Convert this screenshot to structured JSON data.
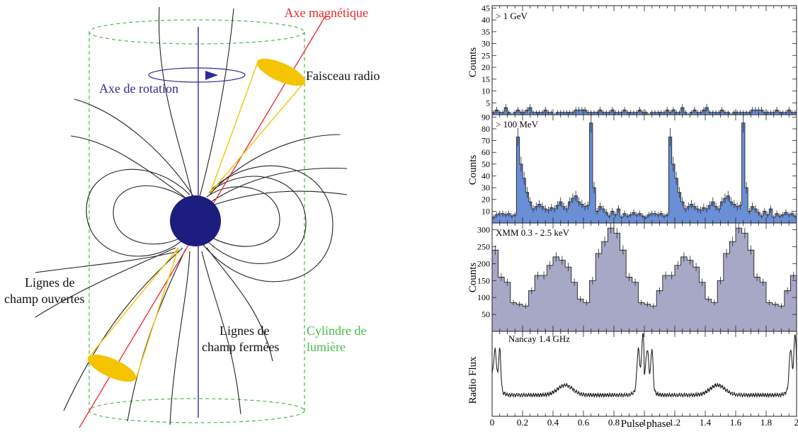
{
  "diagram": {
    "labels": {
      "magnetic_axis": "Axe magnétique",
      "radio_beam": "Faisceau radio",
      "rotation_axis": "Axe de rotation",
      "open_lines_1": "Lignes de",
      "open_lines_2": "champ ouvertes",
      "closed_lines_1": "Lignes de",
      "closed_lines_2": "champ fermées",
      "light_cyl_1": "Cylindre de",
      "light_cyl_2": "lumière"
    },
    "colors": {
      "magnetic_axis": "#e8242a",
      "rotation_axis": "#2b2b9e",
      "beam": "#f5c400",
      "cylinder": "#4db84d",
      "star": "#1d1d80",
      "field_lines": "#222222"
    }
  },
  "panels": {
    "xlabel": "Pulse phase",
    "p1": {
      "label": "> 1 GeV",
      "ylabel": "Counts"
    },
    "p2": {
      "label": "> 100 MeV",
      "ylabel": "Counts"
    },
    "p3": {
      "label": "XMM 0.3 - 2.5 keV",
      "ylabel": "Counts"
    },
    "p4": {
      "label": "Nancay 1.4 GHz",
      "ylabel": "Radio Flux"
    }
  },
  "chart_data": [
    {
      "type": "bar",
      "title": "> 1 GeV",
      "ylabel": "Counts",
      "xlabel": "Pulse phase",
      "xlim": [
        0,
        2
      ],
      "ylim": [
        0,
        46
      ],
      "yticks": [
        5,
        10,
        15,
        20,
        25,
        30,
        35,
        40,
        45
      ],
      "color": "#6a8fd6",
      "bins": 100,
      "values": [
        1,
        2,
        1,
        1,
        3,
        1,
        0,
        1,
        2,
        1,
        1,
        2,
        3,
        1,
        1,
        1,
        1,
        2,
        1,
        1,
        0,
        1,
        1,
        1,
        1,
        1,
        1,
        2,
        2,
        2,
        2,
        1,
        1,
        1,
        1,
        2,
        1,
        1,
        1,
        2,
        1,
        1,
        1,
        2,
        1,
        1,
        1,
        1,
        2,
        1,
        1,
        0,
        1,
        1,
        1,
        1,
        1,
        2,
        1,
        2,
        1,
        1,
        3,
        1,
        0,
        1,
        2,
        1,
        1,
        2,
        3,
        1,
        1,
        1,
        1,
        2,
        1,
        1,
        0,
        1,
        1,
        1,
        1,
        1,
        1,
        2,
        2,
        2,
        2,
        1,
        1,
        1,
        1,
        2,
        1,
        1,
        1,
        2,
        1,
        1
      ]
    },
    {
      "type": "bar",
      "title": "> 100 MeV",
      "ylabel": "Counts",
      "xlim": [
        0,
        2
      ],
      "ylim": [
        0,
        92
      ],
      "yticks": [
        10,
        20,
        30,
        40,
        50,
        60,
        70,
        80,
        90
      ],
      "color": "#6a8fd6",
      "bins": 100,
      "values": [
        5,
        7,
        8,
        8,
        7,
        8,
        6,
        7,
        73,
        50,
        38,
        26,
        18,
        12,
        14,
        16,
        14,
        12,
        11,
        13,
        12,
        15,
        18,
        14,
        12,
        18,
        21,
        23,
        18,
        16,
        14,
        15,
        85,
        30,
        10,
        14,
        12,
        9,
        6,
        10,
        7,
        12,
        5,
        8,
        6,
        7,
        9,
        7,
        8,
        6,
        5,
        7,
        8,
        8,
        7,
        8,
        6,
        7,
        73,
        50,
        38,
        26,
        18,
        12,
        14,
        16,
        14,
        12,
        11,
        13,
        12,
        15,
        18,
        14,
        12,
        18,
        21,
        23,
        18,
        16,
        14,
        15,
        85,
        30,
        10,
        14,
        12,
        9,
        6,
        10,
        7,
        12,
        5,
        8,
        6,
        7,
        9,
        7,
        8,
        6
      ]
    },
    {
      "type": "bar",
      "title": "XMM 0.3 - 2.5 keV",
      "ylabel": "Counts",
      "xlim": [
        0,
        2
      ],
      "ylim": [
        0,
        320
      ],
      "yticks": [
        50,
        100,
        150,
        200,
        250,
        300
      ],
      "color": "#a7a7c6",
      "bins": 50,
      "values": [
        240,
        160,
        145,
        85,
        80,
        75,
        120,
        165,
        165,
        195,
        220,
        210,
        190,
        145,
        95,
        85,
        150,
        230,
        265,
        305,
        290,
        240,
        160,
        145,
        85,
        80,
        75,
        120,
        165,
        165,
        195,
        220,
        210,
        190,
        145,
        95,
        85,
        150,
        230,
        265,
        305,
        290,
        240,
        160,
        145,
        85,
        80,
        75,
        120,
        165
      ]
    },
    {
      "type": "line",
      "title": "Nancay 1.4 GHz",
      "ylabel": "Radio Flux",
      "xlabel": "Pulse phase",
      "xlim": [
        0,
        2
      ],
      "xticks": [
        0,
        0.2,
        0.4,
        0.6,
        0.8,
        1,
        1.2,
        1.4,
        1.6,
        1.8,
        2
      ],
      "xticklabels": [
        "0",
        "0.2",
        "0.4",
        "0.6",
        "0.8",
        "1",
        "1.2",
        "1.4",
        "1.6",
        "1.8",
        "2"
      ],
      "peaks": [
        0.02,
        0.05,
        0.48,
        0.96,
        0.99,
        1.02,
        1.48,
        1.96,
        1.99
      ]
    }
  ]
}
